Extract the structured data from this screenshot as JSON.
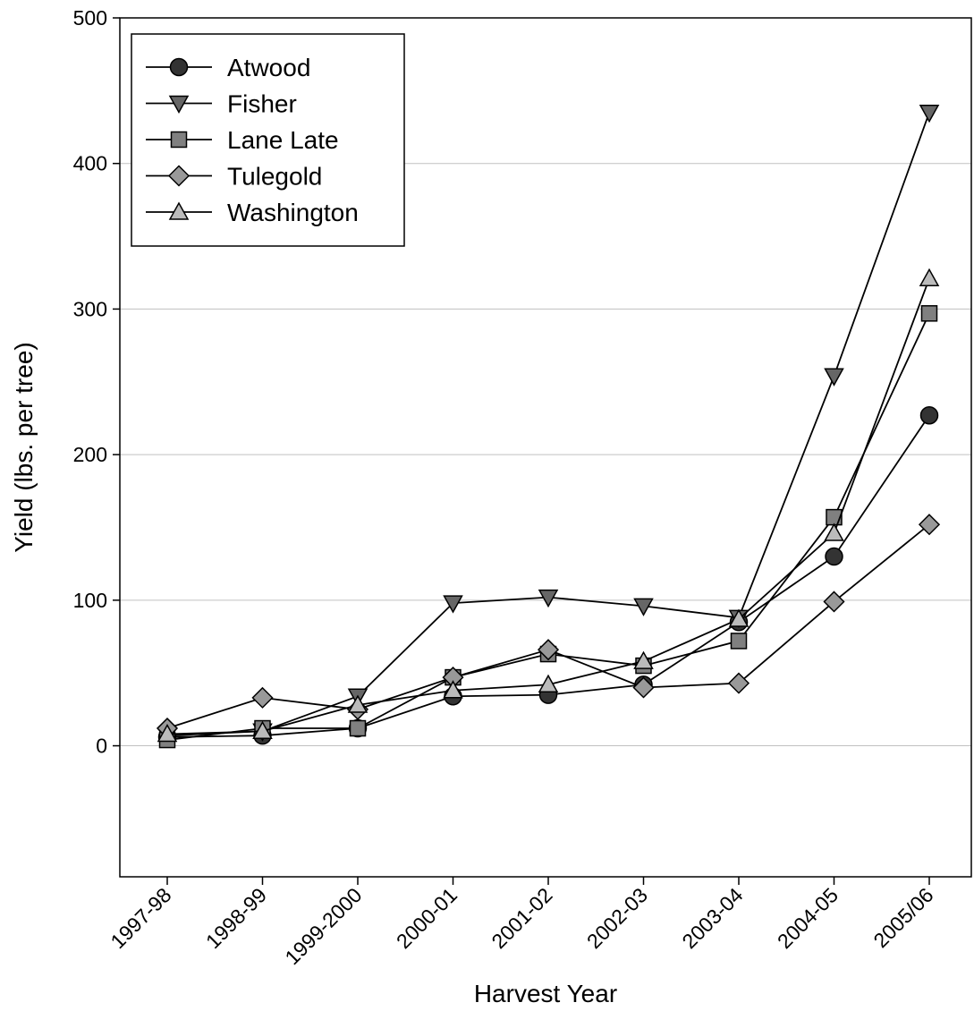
{
  "chart_data": {
    "type": "line",
    "title": "",
    "xlabel": "Harvest Year",
    "ylabel": "Yield (lbs. per tree)",
    "categories": [
      "1997-98",
      "1998-99",
      "1999-2000",
      "2000-01",
      "2001-02",
      "2002-03",
      "2003-04",
      "2004-05",
      "2005/06"
    ],
    "ylim": [
      -90,
      500
    ],
    "yticks": [
      0,
      100,
      200,
      300,
      400,
      500
    ],
    "grid": "horizontal",
    "legend_position": "top-left",
    "series": [
      {
        "name": "Atwood",
        "marker": "circle",
        "color": "#333333",
        "values": [
          6,
          7,
          12,
          34,
          35,
          42,
          85,
          130,
          227
        ]
      },
      {
        "name": "Fisher",
        "marker": "triangle-down",
        "color": "#666666",
        "values": [
          7,
          10,
          34,
          98,
          102,
          96,
          88,
          254,
          435
        ]
      },
      {
        "name": "Lane Late",
        "marker": "square",
        "color": "#808080",
        "values": [
          4,
          12,
          12,
          47,
          63,
          55,
          72,
          157,
          297
        ]
      },
      {
        "name": "Tulegold",
        "marker": "diamond",
        "color": "#999999",
        "values": [
          12,
          33,
          25,
          47,
          66,
          40,
          43,
          99,
          152
        ]
      },
      {
        "name": "Washington",
        "marker": "triangle-up",
        "color": "#bbbbbb",
        "values": [
          8,
          10,
          28,
          38,
          42,
          58,
          87,
          146,
          321
        ]
      }
    ]
  }
}
